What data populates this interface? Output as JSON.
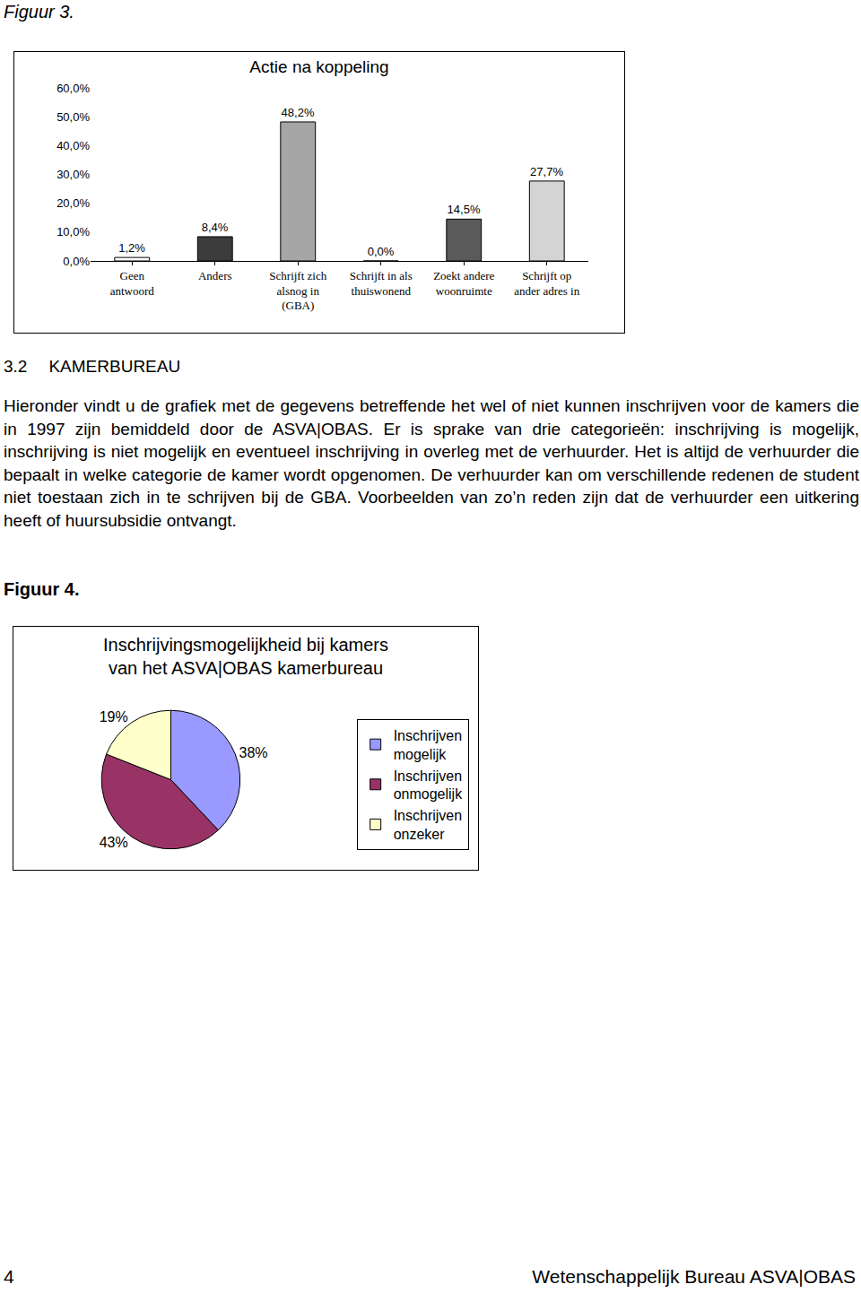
{
  "document": {
    "figure3_label": "Figuur 3.",
    "section": {
      "number": "3.2",
      "title": "KAMERBUREAU",
      "paragraph": "Hieronder vindt u de grafiek met de gegevens betreffende het wel of niet kunnen inschrijven voor de kamers die in 1997 zijn bemiddeld door de ASVA|OBAS. Er is sprake van drie categorieën: inschrijving is mogelijk, inschrijving is niet mogelijk en eventueel inschrijving in overleg met de verhuurder. Het is altijd de verhuurder die bepaalt in welke categorie de kamer wordt opgenomen. De verhuurder kan om verschillende redenen de student niet toestaan zich in te schrijven bij de GBA. Voorbeelden van zo’n reden zijn dat de verhuurder een uitkering heeft of huursubsidie ontvangt."
    },
    "figure4_label": "Figuur 4.",
    "footer": {
      "page": "4",
      "text": "Wetenschappelijk Bureau ASVA|OBAS"
    }
  },
  "chart_data": [
    {
      "type": "bar",
      "title": "Actie na koppeling",
      "categories": [
        "Geen\nantwoord",
        "Anders",
        "Schrijft zich\nalsnog in\n(GBA)",
        "Schrijft in als\nthuiswonend",
        "Zoekt andere\nwoonruimte",
        "Schrijft op\nander adres in"
      ],
      "values": [
        1.2,
        8.4,
        48.2,
        0.0,
        14.5,
        27.7
      ],
      "value_labels": [
        "1,2%",
        "8,4%",
        "48,2%",
        "0,0%",
        "14,5%",
        "27,7%"
      ],
      "colors": [
        "#ffffff",
        "#3c3c3c",
        "#a6a6a6",
        "#ffffff",
        "#5a5a5a",
        "#d4d4d4"
      ],
      "ylim": [
        0,
        60
      ],
      "yticks": [
        {
          "value": 0,
          "label": "0,0%"
        },
        {
          "value": 10,
          "label": "10,0%"
        },
        {
          "value": 20,
          "label": "20,0%"
        },
        {
          "value": 30,
          "label": "30,0%"
        },
        {
          "value": 40,
          "label": "40,0%"
        },
        {
          "value": 50,
          "label": "50,0%"
        },
        {
          "value": 60,
          "label": "60,0%"
        }
      ],
      "grid": false,
      "data_labels": true
    },
    {
      "type": "pie",
      "title": "Inschrijvingsmogelijkheid bij kamers\nvan het ASVA|OBAS kamerbureau",
      "categories": [
        "Inschrijven\nmogelijk",
        "Inschrijven\nonmogelijk",
        "Inschrijven\nonzeker"
      ],
      "values": [
        38,
        43,
        19
      ],
      "value_labels": [
        "38%",
        "43%",
        "19%"
      ],
      "colors": [
        "#9999ff",
        "#993366",
        "#ffffcc"
      ],
      "legend": "right",
      "data_labels": true
    }
  ]
}
